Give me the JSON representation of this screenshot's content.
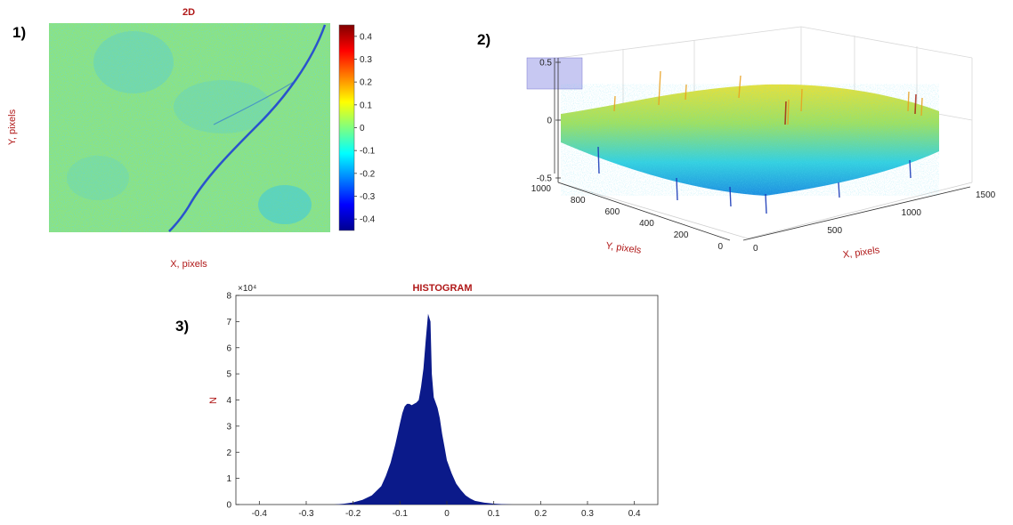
{
  "panels": [
    {
      "label": "1)"
    },
    {
      "label": "2)"
    },
    {
      "label": "3)"
    }
  ],
  "chart_data": [
    {
      "type": "heatmap",
      "title": "2D",
      "xlabel": "X, pixels",
      "ylabel": "Y, pixels",
      "colormap": "jet",
      "colorbar": {
        "ticks": [
          {
            "value": 0.4,
            "label": "0.4"
          },
          {
            "value": 0.3,
            "label": "0.3"
          },
          {
            "value": 0.2,
            "label": "0.2"
          },
          {
            "value": 0.1,
            "label": "0.1"
          },
          {
            "value": 0,
            "label": "0"
          },
          {
            "value": -0.1,
            "label": "-0.1"
          },
          {
            "value": -0.2,
            "label": "-0.2"
          },
          {
            "value": -0.3,
            "label": "-0.3"
          },
          {
            "value": -0.4,
            "label": "-0.4"
          }
        ],
        "range": [
          -0.45,
          0.45
        ]
      }
    },
    {
      "type": "surface",
      "xlabel": "X, pixels",
      "ylabel": "Y, pixels",
      "colormap": "jet",
      "zticks": [
        {
          "value": 0.5,
          "label": "0.5"
        },
        {
          "value": 0,
          "label": "0"
        },
        {
          "value": -0.5,
          "label": "-0.5"
        }
      ],
      "yticks": [
        {
          "value": 1000,
          "label": "1000"
        },
        {
          "value": 800,
          "label": "800"
        },
        {
          "value": 600,
          "label": "600"
        },
        {
          "value": 400,
          "label": "400"
        },
        {
          "value": 200,
          "label": "200"
        },
        {
          "value": 0,
          "label": "0"
        }
      ],
      "xticks": [
        {
          "value": 0,
          "label": "0"
        },
        {
          "value": 500,
          "label": "500"
        },
        {
          "value": 1000,
          "label": "1000"
        },
        {
          "value": 1500,
          "label": "1500"
        }
      ],
      "zlim": [
        -0.5,
        0.5
      ],
      "xlim": [
        0,
        1500
      ],
      "ylim": [
        0,
        1000
      ]
    },
    {
      "type": "bar",
      "title": "HISTOGRAM",
      "ylabel": "N",
      "yexponent": "×10⁴",
      "color": "#0b1a8a",
      "xlim": [
        -0.45,
        0.45
      ],
      "ylim": [
        0,
        80000
      ],
      "xticks": [
        {
          "value": -0.4,
          "label": "-0.4"
        },
        {
          "value": -0.3,
          "label": "-0.3"
        },
        {
          "value": -0.2,
          "label": "-0.2"
        },
        {
          "value": -0.1,
          "label": "-0.1"
        },
        {
          "value": 0,
          "label": "0"
        },
        {
          "value": 0.1,
          "label": "0.1"
        },
        {
          "value": 0.2,
          "label": "0.2"
        },
        {
          "value": 0.3,
          "label": "0.3"
        },
        {
          "value": 0.4,
          "label": "0.4"
        }
      ],
      "yticks": [
        {
          "value": 0,
          "label": "0"
        },
        {
          "value": 10000,
          "label": "1"
        },
        {
          "value": 20000,
          "label": "2"
        },
        {
          "value": 30000,
          "label": "3"
        },
        {
          "value": 40000,
          "label": "4"
        },
        {
          "value": 50000,
          "label": "5"
        },
        {
          "value": 60000,
          "label": "6"
        },
        {
          "value": 70000,
          "label": "7"
        },
        {
          "value": 80000,
          "label": "8"
        }
      ],
      "bins": [
        {
          "x": -0.24,
          "y": 0
        },
        {
          "x": -0.22,
          "y": 300
        },
        {
          "x": -0.2,
          "y": 800
        },
        {
          "x": -0.18,
          "y": 1800
        },
        {
          "x": -0.16,
          "y": 3500
        },
        {
          "x": -0.14,
          "y": 7000
        },
        {
          "x": -0.13,
          "y": 11000
        },
        {
          "x": -0.12,
          "y": 16000
        },
        {
          "x": -0.11,
          "y": 23000
        },
        {
          "x": -0.1,
          "y": 31000
        },
        {
          "x": -0.095,
          "y": 35000
        },
        {
          "x": -0.09,
          "y": 37500
        },
        {
          "x": -0.085,
          "y": 38500
        },
        {
          "x": -0.08,
          "y": 38500
        },
        {
          "x": -0.075,
          "y": 38000
        },
        {
          "x": -0.07,
          "y": 38500
        },
        {
          "x": -0.065,
          "y": 39000
        },
        {
          "x": -0.06,
          "y": 40000
        },
        {
          "x": -0.055,
          "y": 45000
        },
        {
          "x": -0.05,
          "y": 52000
        },
        {
          "x": -0.045,
          "y": 63000
        },
        {
          "x": -0.04,
          "y": 73000
        },
        {
          "x": -0.035,
          "y": 70000
        },
        {
          "x": -0.032,
          "y": 50000
        },
        {
          "x": -0.028,
          "y": 41000
        },
        {
          "x": -0.02,
          "y": 37000
        },
        {
          "x": -0.015,
          "y": 33000
        },
        {
          "x": -0.01,
          "y": 27000
        },
        {
          "x": -0.005,
          "y": 22000
        },
        {
          "x": 0,
          "y": 17000
        },
        {
          "x": 0.01,
          "y": 12000
        },
        {
          "x": 0.02,
          "y": 8000
        },
        {
          "x": 0.03,
          "y": 5500
        },
        {
          "x": 0.04,
          "y": 3500
        },
        {
          "x": 0.05,
          "y": 2300
        },
        {
          "x": 0.06,
          "y": 1400
        },
        {
          "x": 0.08,
          "y": 700
        },
        {
          "x": 0.1,
          "y": 350
        },
        {
          "x": 0.12,
          "y": 150
        },
        {
          "x": 0.14,
          "y": 0
        }
      ]
    }
  ]
}
